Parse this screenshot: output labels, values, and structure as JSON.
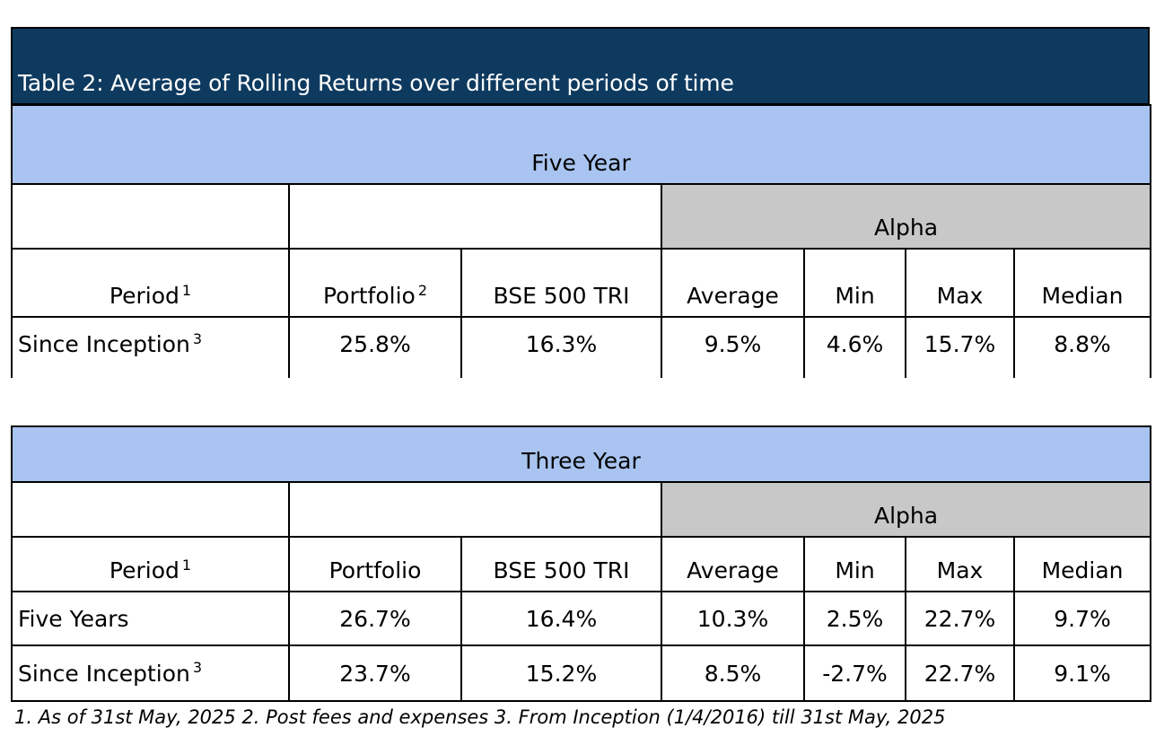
{
  "title": "Table 2: Average of Rolling Returns over different periods of time",
  "colors": {
    "title_bg": "#0e3a5f",
    "title_text": "#ffffff",
    "section_bg": "#a9c4f0",
    "alpha_bg": "#c8c8c8"
  },
  "five_year": {
    "section_label": "Five Year",
    "alpha_label": "Alpha",
    "headers": {
      "period": "Period",
      "period_sup": "1",
      "portfolio": "Portfolio",
      "portfolio_sup": "2",
      "benchmark": "BSE 500 TRI",
      "average": "Average",
      "min": "Min",
      "max": "Max",
      "median": "Median"
    },
    "rows": [
      {
        "period": "Since Inception",
        "period_sup": "3",
        "portfolio": "25.8%",
        "benchmark": "16.3%",
        "average": "9.5%",
        "min": "4.6%",
        "max": "15.7%",
        "median": "8.8%"
      }
    ]
  },
  "three_year": {
    "section_label": "Three Year",
    "alpha_label": "Alpha",
    "headers": {
      "period": "Period",
      "period_sup": "1",
      "portfolio": "Portfolio",
      "benchmark": "BSE 500 TRI",
      "average": "Average",
      "min": "Min",
      "max": "Max",
      "median": "Median"
    },
    "rows": [
      {
        "period": "Five Years",
        "portfolio": "26.7%",
        "benchmark": "16.4%",
        "average": "10.3%",
        "min": "2.5%",
        "max": "22.7%",
        "median": "9.7%"
      },
      {
        "period": "Since Inception",
        "period_sup": "3",
        "portfolio": "23.7%",
        "benchmark": "15.2%",
        "average": "8.5%",
        "min": "-2.7%",
        "max": "22.7%",
        "median": "9.1%"
      }
    ]
  },
  "footnote": "1. As of 31st May, 2025 2. Post fees and expenses 3. From Inception (1/4/2016) till 31st May, 2025"
}
